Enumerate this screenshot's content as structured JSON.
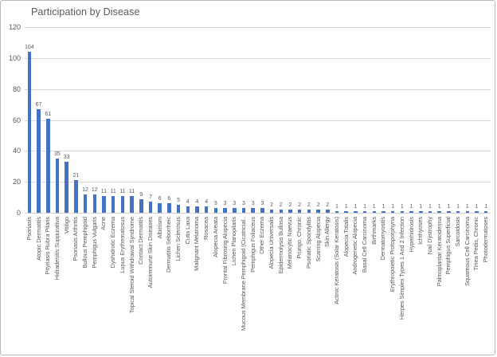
{
  "window": {
    "background": "#ffffff",
    "border_color": "#b8b8b8"
  },
  "chart_data": {
    "type": "bar",
    "title": "Participation by Disease",
    "xlabel": "",
    "ylabel": "",
    "ylim": [
      0,
      120
    ],
    "y_ticks": [
      0,
      20,
      40,
      60,
      80,
      100,
      120
    ],
    "grid": true,
    "legend": "none",
    "data_labels": true,
    "bar_color": "#4472c4",
    "text_color": "#595959",
    "gridline_color": "#d9d9d9",
    "categories": [
      "Psoriasis",
      "Atopic Dermatitis",
      "Pityriasis Rubra Pilaris",
      "Hidradenitis Suppurativa",
      "Vitiligo",
      "Psoriasis Arthritis",
      "Bullous Pemphigoid",
      "Pemphigus Vulgaris",
      "Acne",
      "Dyshidrotic Eczema",
      "Lupus Erythematosus",
      "Topical Steroid Withdrawal Syndrome",
      "Contact Dermatitis",
      "Autoimmune Skin Diseases",
      "Albinism",
      "Dermatitis Seborrheic",
      "Lichen Sclerosus",
      "Cutis Laxa",
      "Malignant Melanoma",
      "Rosacea",
      "Alopecia Areata",
      "Frontal Fibrosing Alopecia",
      "Lichen Planopilaris",
      "Mucous Membrane Pemphigoid (Cicatricial..",
      "Pemphigus Foliaceus",
      "Other Eczema",
      "Alopecia Universalis",
      "Epidermolysis Bullosa",
      "Melanocytic Naevus",
      "Prurigo, Chronic",
      "Psoriatic Spondylitis",
      "Scarring Alopecia",
      "Skin Allergy",
      "Actinic Keratosis (Solar Keratosis)",
      "Alopecia Totalis",
      "Androgenetic Alopecia",
      "Basal Cell Carcinoma",
      "Birthmarks",
      "Dermatomyositis",
      "Erythropoietic Protoporphyria",
      "Herpes Simplex Types 1 And 2 Infection",
      "Hyperhidrosis",
      "Ichthyoses",
      "Nail Dystrophy",
      "Palmoplantar Keratoderma",
      "Pemphigus Superficial",
      "Sarcoidosis",
      "Squamous Cell Carcinoma",
      "Tinea Pedis, Chronic",
      "Photodermatoses"
    ],
    "values": [
      104,
      67,
      61,
      35,
      33,
      21,
      12,
      12,
      11,
      11,
      11,
      11,
      9,
      7,
      6,
      6,
      5,
      4,
      4,
      4,
      3,
      3,
      3,
      3,
      3,
      3,
      2,
      2,
      2,
      2,
      2,
      2,
      2,
      1,
      1,
      1,
      1,
      1,
      1,
      1,
      1,
      1,
      1,
      1,
      1,
      1,
      1,
      1,
      1,
      1
    ]
  }
}
